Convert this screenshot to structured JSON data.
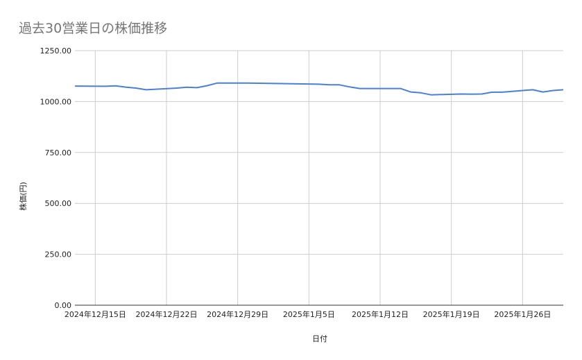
{
  "chart_data": {
    "type": "line",
    "title": "過去30営業日の株価推移",
    "xlabel": "日付",
    "ylabel": "株価(円)",
    "ylim": [
      0,
      1250
    ],
    "yticks": [
      "0.00",
      "250.00",
      "500.00",
      "750.00",
      "1000.00",
      "1250.00"
    ],
    "xlim": [
      "2024-12-13",
      "2025-01-30"
    ],
    "xticks": [
      {
        "date": "2024-12-15",
        "label": "2024年12月15日"
      },
      {
        "date": "2024-12-22",
        "label": "2024年12月22日"
      },
      {
        "date": "2024-12-29",
        "label": "2024年12月29日"
      },
      {
        "date": "2025-01-05",
        "label": "2025年1月5日"
      },
      {
        "date": "2025-01-12",
        "label": "2025年1月12日"
      },
      {
        "date": "2025-01-19",
        "label": "2025年1月19日"
      },
      {
        "date": "2025-01-26",
        "label": "2025年1月26日"
      }
    ],
    "grid": true,
    "line_color": "#4a7fd6",
    "x": [
      "2024-12-13",
      "2024-12-16",
      "2024-12-17",
      "2024-12-18",
      "2024-12-19",
      "2024-12-20",
      "2024-12-23",
      "2024-12-24",
      "2024-12-25",
      "2024-12-26",
      "2024-12-27",
      "2024-12-30",
      "2025-01-06",
      "2025-01-07",
      "2025-01-08",
      "2025-01-09",
      "2025-01-10",
      "2025-01-14",
      "2025-01-15",
      "2025-01-16",
      "2025-01-17",
      "2025-01-20",
      "2025-01-21",
      "2025-01-22",
      "2025-01-23",
      "2025-01-24",
      "2025-01-27",
      "2025-01-28",
      "2025-01-29",
      "2025-01-30"
    ],
    "values": [
      1076,
      1075,
      1077,
      1071,
      1066,
      1058,
      1066,
      1070,
      1068,
      1078,
      1091,
      1091,
      1085,
      1082,
      1082,
      1072,
      1064,
      1064,
      1047,
      1043,
      1033,
      1037,
      1036,
      1037,
      1046,
      1046,
      1058,
      1047,
      1054,
      1058
    ]
  }
}
